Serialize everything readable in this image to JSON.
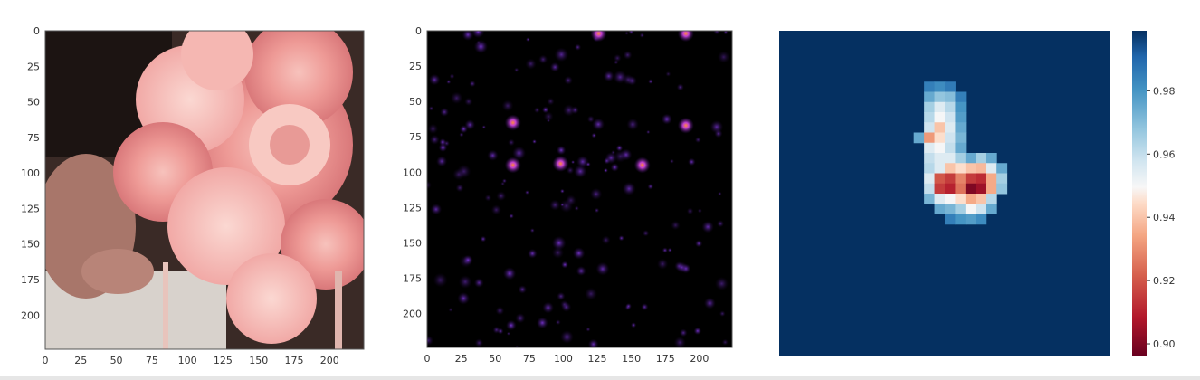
{
  "chart_data": [
    {
      "type": "image",
      "content": "photo of pink roses and hydrangeas",
      "x_ticks": [
        "0",
        "25",
        "50",
        "75",
        "100",
        "125",
        "150",
        "175",
        "200"
      ],
      "y_ticks": [
        "0",
        "25",
        "50",
        "75",
        "100",
        "125",
        "150",
        "175",
        "200"
      ],
      "xlim": [
        0,
        224
      ],
      "ylim": [
        224,
        0
      ]
    },
    {
      "type": "heatmap",
      "content": "saliency map (purple/orange hot spots on black)",
      "x_ticks": [
        "0",
        "25",
        "50",
        "75",
        "100",
        "125",
        "150",
        "175",
        "200"
      ],
      "y_ticks": [
        "0",
        "25",
        "50",
        "75",
        "100",
        "125",
        "150",
        "175",
        "200"
      ],
      "xlim": [
        0,
        224
      ],
      "ylim": [
        224,
        0
      ],
      "hot_spots": [
        {
          "x": 63,
          "y": 65
        },
        {
          "x": 190,
          "y": 67
        },
        {
          "x": 63,
          "y": 95
        },
        {
          "x": 98,
          "y": 94
        },
        {
          "x": 158,
          "y": 95
        },
        {
          "x": 126,
          "y": 2
        },
        {
          "x": 190,
          "y": 2
        }
      ]
    },
    {
      "type": "heatmap",
      "content": "occlusion sensitivity map (RdBu colormap)",
      "colorbar": {
        "ticks": [
          "0.98",
          "0.96",
          "0.94",
          "0.92",
          "0.90"
        ],
        "min": 0.896,
        "max": 0.999,
        "colormap": "RdBu"
      },
      "blob_cells": [
        {
          "c": 14,
          "r": 5,
          "v": 0.985
        },
        {
          "c": 15,
          "r": 5,
          "v": 0.982
        },
        {
          "c": 16,
          "r": 5,
          "v": 0.986
        },
        {
          "c": 14,
          "r": 6,
          "v": 0.975
        },
        {
          "c": 15,
          "r": 6,
          "v": 0.968
        },
        {
          "c": 16,
          "r": 6,
          "v": 0.97
        },
        {
          "c": 17,
          "r": 6,
          "v": 0.985
        },
        {
          "c": 14,
          "r": 7,
          "v": 0.965
        },
        {
          "c": 15,
          "r": 7,
          "v": 0.955
        },
        {
          "c": 16,
          "r": 7,
          "v": 0.962
        },
        {
          "c": 17,
          "r": 7,
          "v": 0.98
        },
        {
          "c": 14,
          "r": 8,
          "v": 0.962
        },
        {
          "c": 15,
          "r": 8,
          "v": 0.95
        },
        {
          "c": 16,
          "r": 8,
          "v": 0.958
        },
        {
          "c": 17,
          "r": 8,
          "v": 0.978
        },
        {
          "c": 14,
          "r": 9,
          "v": 0.958
        },
        {
          "c": 15,
          "r": 9,
          "v": 0.94
        },
        {
          "c": 16,
          "r": 9,
          "v": 0.955
        },
        {
          "c": 17,
          "r": 9,
          "v": 0.975
        },
        {
          "c": 13,
          "r": 10,
          "v": 0.975
        },
        {
          "c": 14,
          "r": 10,
          "v": 0.932
        },
        {
          "c": 15,
          "r": 10,
          "v": 0.945
        },
        {
          "c": 16,
          "r": 10,
          "v": 0.958
        },
        {
          "c": 17,
          "r": 10,
          "v": 0.972
        },
        {
          "c": 14,
          "r": 11,
          "v": 0.955
        },
        {
          "c": 15,
          "r": 11,
          "v": 0.95
        },
        {
          "c": 16,
          "r": 11,
          "v": 0.96
        },
        {
          "c": 17,
          "r": 11,
          "v": 0.975
        },
        {
          "c": 14,
          "r": 12,
          "v": 0.96
        },
        {
          "c": 15,
          "r": 12,
          "v": 0.955
        },
        {
          "c": 16,
          "r": 12,
          "v": 0.955
        },
        {
          "c": 17,
          "r": 12,
          "v": 0.965
        },
        {
          "c": 18,
          "r": 12,
          "v": 0.975
        },
        {
          "c": 19,
          "r": 12,
          "v": 0.965
        },
        {
          "c": 20,
          "r": 12,
          "v": 0.975
        },
        {
          "c": 14,
          "r": 13,
          "v": 0.962
        },
        {
          "c": 15,
          "r": 13,
          "v": 0.955
        },
        {
          "c": 16,
          "r": 13,
          "v": 0.94
        },
        {
          "c": 17,
          "r": 13,
          "v": 0.945
        },
        {
          "c": 18,
          "r": 13,
          "v": 0.94
        },
        {
          "c": 19,
          "r": 13,
          "v": 0.938
        },
        {
          "c": 20,
          "r": 13,
          "v": 0.955
        },
        {
          "c": 21,
          "r": 13,
          "v": 0.975
        },
        {
          "c": 14,
          "r": 14,
          "v": 0.955
        },
        {
          "c": 15,
          "r": 14,
          "v": 0.92
        },
        {
          "c": 16,
          "r": 14,
          "v": 0.915
        },
        {
          "c": 17,
          "r": 14,
          "v": 0.928
        },
        {
          "c": 18,
          "r": 14,
          "v": 0.915
        },
        {
          "c": 19,
          "r": 14,
          "v": 0.912
        },
        {
          "c": 20,
          "r": 14,
          "v": 0.935
        },
        {
          "c": 21,
          "r": 14,
          "v": 0.965
        },
        {
          "c": 14,
          "r": 15,
          "v": 0.96
        },
        {
          "c": 15,
          "r": 15,
          "v": 0.915
        },
        {
          "c": 16,
          "r": 15,
          "v": 0.91
        },
        {
          "c": 17,
          "r": 15,
          "v": 0.925
        },
        {
          "c": 18,
          "r": 15,
          "v": 0.9
        },
        {
          "c": 19,
          "r": 15,
          "v": 0.905
        },
        {
          "c": 20,
          "r": 15,
          "v": 0.935
        },
        {
          "c": 21,
          "r": 15,
          "v": 0.968
        },
        {
          "c": 14,
          "r": 16,
          "v": 0.972
        },
        {
          "c": 15,
          "r": 16,
          "v": 0.955
        },
        {
          "c": 16,
          "r": 16,
          "v": 0.95
        },
        {
          "c": 17,
          "r": 16,
          "v": 0.945
        },
        {
          "c": 18,
          "r": 16,
          "v": 0.935
        },
        {
          "c": 19,
          "r": 16,
          "v": 0.94
        },
        {
          "c": 20,
          "r": 16,
          "v": 0.962
        },
        {
          "c": 15,
          "r": 17,
          "v": 0.975
        },
        {
          "c": 16,
          "r": 17,
          "v": 0.972
        },
        {
          "c": 17,
          "r": 17,
          "v": 0.965
        },
        {
          "c": 18,
          "r": 17,
          "v": 0.95
        },
        {
          "c": 19,
          "r": 17,
          "v": 0.958
        },
        {
          "c": 20,
          "r": 17,
          "v": 0.975
        },
        {
          "c": 16,
          "r": 18,
          "v": 0.985
        },
        {
          "c": 17,
          "r": 18,
          "v": 0.98
        },
        {
          "c": 18,
          "r": 18,
          "v": 0.978
        },
        {
          "c": 19,
          "r": 18,
          "v": 0.982
        }
      ]
    }
  ]
}
